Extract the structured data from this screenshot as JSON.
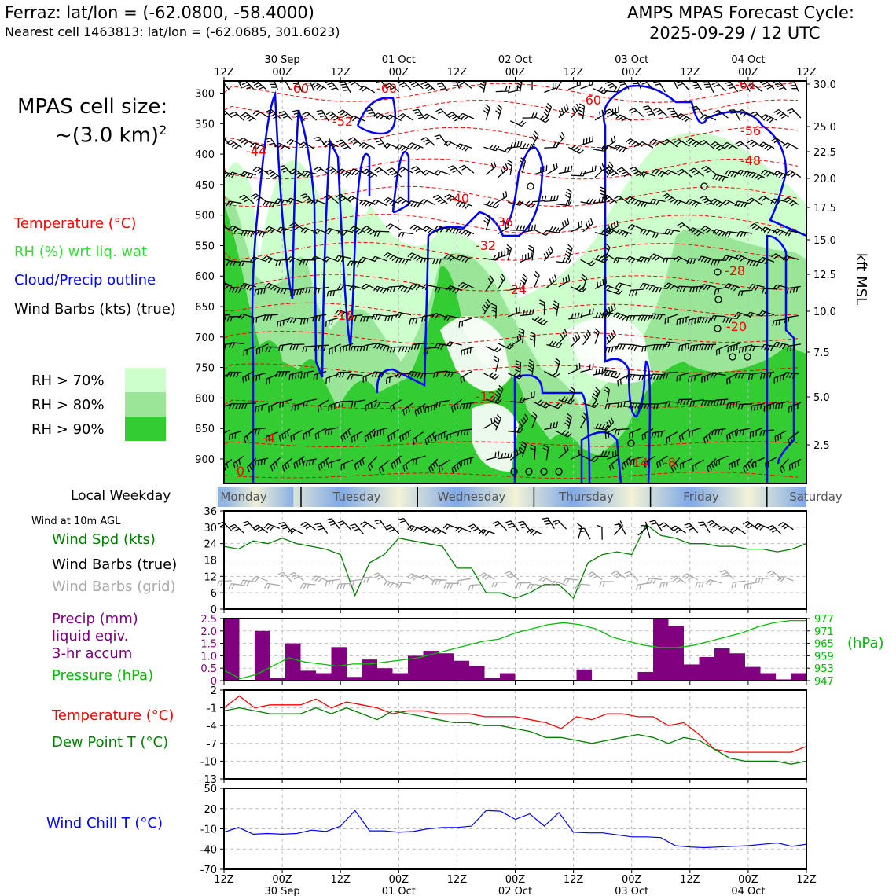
{
  "header": {
    "location": "Ferraz: lat/lon = (-62.0800, -58.4000)",
    "nearest_cell": "Nearest cell 1463813: lat/lon = (-62.0685, 301.6023)",
    "title_line1": "AMPS MPAS Forecast Cycle:",
    "title_line2": "2025-09-29 / 12 UTC"
  },
  "cell_size": {
    "line1": "MPAS cell size:",
    "line2": "~(3.0 km)",
    "sup": "2"
  },
  "legend": {
    "temperature": "Temperature (°C)",
    "rh": "RH (%) wrt liq. wat",
    "cloud": "Cloud/Precip outline",
    "wind": "Wind Barbs (kts) (true)",
    "rh70": "RH > 70%",
    "rh80": "RH > 80%",
    "rh90": "RH > 90%"
  },
  "colors": {
    "rh70": "#ccffcc",
    "rh80": "#99e699",
    "rh90": "#33cc33",
    "temperature": "#ff0000",
    "cloud": "#0000ff",
    "wind_spd": "#008000",
    "precip": "#800080",
    "pressure": "#00c000",
    "dewpoint": "#008000",
    "windchill": "#0000ff",
    "grid_barbs": "#aaaaaa"
  },
  "time_axis": {
    "ticks": [
      "12Z",
      "00Z",
      "12Z",
      "00Z",
      "12Z",
      "00Z",
      "12Z",
      "00Z",
      "12Z",
      "00Z",
      "12Z"
    ],
    "dates": [
      "30 Sep",
      "01 Oct",
      "02 Oct",
      "03 Oct",
      "04 Oct"
    ],
    "date_tick_index": [
      1,
      3,
      5,
      7,
      9
    ]
  },
  "weekday": {
    "title": "Local Weekday",
    "days": [
      "Monday",
      "Tuesday",
      "Wednesday",
      "Thursday",
      "Friday",
      "Saturday"
    ]
  },
  "panels": {
    "wind": {
      "title": "Wind at 10m AGL",
      "spd": "Wind Spd (kts)",
      "barbs_true": "Wind Barbs (true)",
      "barbs_grid": "Wind Barbs (grid)"
    },
    "precip": {
      "l1": "Precip (mm)",
      "l2": "liquid eqiv.",
      "l3": "3-hr accum",
      "pressure": "Pressure (hPa)",
      "unit_right": "(hPa)"
    },
    "temp": {
      "t": "Temperature (°C)",
      "td": "Dew Point T (°C)"
    },
    "chill": {
      "wc": "Wind Chill T (°C)"
    }
  },
  "chart_data": [
    {
      "type": "area",
      "ylabel_right": "kft MSL",
      "y_pressure_ticks": [
        300,
        350,
        400,
        450,
        500,
        550,
        600,
        650,
        700,
        750,
        800,
        850,
        900
      ],
      "y_kft_ticks": [
        "30.0",
        "25.0",
        "22.5",
        "20.0",
        "17.5",
        "15.0",
        "12.5",
        "10.0",
        "7.5",
        "5.0",
        "2.5"
      ],
      "temperature_contour_labels": [
        "-60",
        "-60",
        "-60",
        "-64",
        "-52",
        "-56",
        "-44",
        "-48",
        "-40",
        "-36",
        "-32",
        "-28",
        "-24",
        "-20",
        "-16",
        "-12",
        "-4",
        "0",
        "-14",
        "-8"
      ]
    },
    {
      "type": "line",
      "name": "Wind Spd (kts)",
      "ylim": [
        0,
        36
      ],
      "yticks": [
        "0",
        "6",
        "12",
        "18",
        "24",
        "30",
        "36"
      ],
      "x": [
        0,
        3,
        6,
        9,
        12,
        15,
        18,
        21,
        24,
        27,
        30,
        33,
        36,
        39,
        42,
        45,
        48,
        51,
        54,
        57,
        60,
        63,
        66,
        69,
        72,
        75,
        78,
        81,
        84,
        87,
        90,
        93,
        96,
        99,
        102,
        105,
        108,
        111,
        114,
        117,
        120
      ],
      "values": [
        23,
        22,
        25,
        24,
        26,
        24,
        23,
        22,
        20,
        5,
        17,
        20,
        26,
        25,
        24,
        23,
        15,
        15,
        6,
        6,
        4,
        6,
        9,
        9,
        4,
        17,
        20,
        21,
        20,
        31,
        27,
        26,
        24,
        24,
        23,
        23,
        22,
        22,
        21,
        22,
        24
      ]
    },
    {
      "type": "bar",
      "name": "Precip (mm)",
      "ylim": [
        0,
        2.5
      ],
      "yticks": [
        "0",
        "0.5",
        "1.0",
        "1.5",
        "2.0",
        "2.5"
      ],
      "values": [
        2.5,
        0,
        2.0,
        0.1,
        1.5,
        0.4,
        0.3,
        1.35,
        0.15,
        0.85,
        0.5,
        0.3,
        1.0,
        1.2,
        1.1,
        0.8,
        0.6,
        0.1,
        0.3,
        0,
        0,
        0,
        0,
        0.45,
        0,
        0,
        0,
        0.35,
        2.5,
        2.2,
        0.65,
        0.95,
        1.3,
        1.1,
        0.55,
        0.3,
        0.05,
        0.3
      ],
      "pressure": {
        "name": "Pressure (hPa)",
        "ylim": [
          947,
          977
        ],
        "yticks": [
          "947",
          "953",
          "959",
          "965",
          "971",
          "977"
        ],
        "values": [
          952,
          948,
          950,
          954,
          958,
          956,
          955,
          954,
          955,
          955,
          956,
          957,
          958,
          960,
          962,
          964,
          966,
          967,
          970,
          972,
          974,
          975,
          974,
          972,
          968,
          966,
          964,
          963,
          963,
          964,
          966,
          968,
          970,
          973,
          975,
          976,
          976
        ]
      }
    },
    {
      "type": "line",
      "ylim": [
        -13,
        2
      ],
      "yticks": [
        "2",
        "-1",
        "-4",
        "-7",
        "-10",
        "-13"
      ],
      "series": [
        {
          "name": "Temperature (°C)",
          "values": [
            -1,
            1,
            -1,
            -0.5,
            -0.5,
            -0.5,
            0.5,
            -1,
            0,
            -0.5,
            -1,
            -2,
            -1.5,
            -1.5,
            -2,
            -2,
            -2,
            -2.5,
            -2.5,
            -2.5,
            -3,
            -3.5,
            -4.5,
            -2.5,
            -3,
            -2,
            -2,
            -2.5,
            -2.5,
            -4,
            -3.5,
            -5.5,
            -8,
            -8.5,
            -8.5,
            -8.5,
            -8.5,
            -8.5,
            -7.5
          ]
        },
        {
          "name": "Dew Point T (°C)",
          "values": [
            -1.5,
            -1,
            -1.5,
            -2,
            -2,
            -2,
            -1,
            -2,
            -1,
            -2,
            -3,
            -1.5,
            -2,
            -2.5,
            -3,
            -3.5,
            -3.5,
            -4,
            -4,
            -4.5,
            -5,
            -6,
            -6,
            -6.5,
            -7,
            -6.5,
            -6,
            -5.5,
            -6,
            -7,
            -6,
            -6.5,
            -8,
            -9.5,
            -10,
            -10,
            -10,
            -10.5,
            -10
          ]
        }
      ]
    },
    {
      "type": "line",
      "name": "Wind Chill T (°C)",
      "ylim": [
        -70,
        50
      ],
      "yticks": [
        "50",
        "20",
        "-10",
        "-40",
        "-70"
      ],
      "values": [
        -15,
        -8,
        -18,
        -17,
        -18,
        -17,
        -12,
        -14,
        -6,
        17,
        -13,
        -13,
        -15,
        -14,
        -10,
        -8,
        -8,
        -6,
        17,
        16,
        4,
        12,
        -6,
        14,
        -15,
        -16,
        -16,
        -19,
        -22,
        -22,
        -23,
        -35,
        -37,
        -38,
        -37,
        -36,
        -35,
        -33,
        -31,
        -36,
        -33
      ]
    }
  ]
}
